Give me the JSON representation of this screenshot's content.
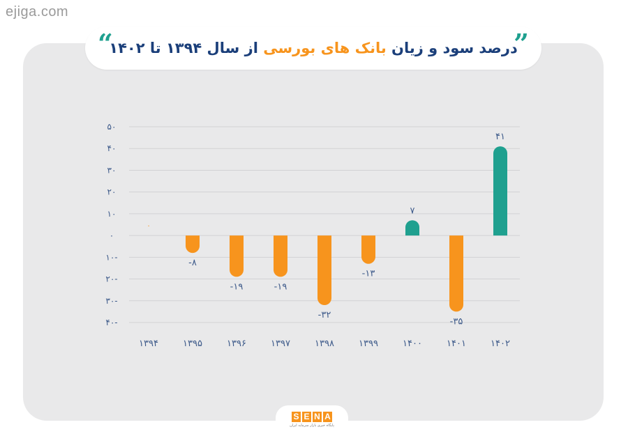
{
  "watermark": "ejiga.com",
  "header": {
    "title_main": "درصد سود و زیان ",
    "title_accent": "بانک های بورسی",
    "title_end": " از سال ۱۳۹۴ تا ۱۴۰۲",
    "quote_open": "”",
    "quote_close": "“"
  },
  "logo": {
    "letters": [
      "S",
      "E",
      "N",
      "A"
    ],
    "tagline": "پایگاه خبری بازار سرمایه ایران"
  },
  "colors": {
    "positive": "#1fa08f",
    "negative": "#f7941d",
    "axis_text": "#3d5a8a",
    "grid": "#d2d2d4"
  },
  "chart_data": {
    "type": "bar",
    "categories": [
      "۱۳۹۴",
      "۱۳۹۵",
      "۱۳۹۶",
      "۱۳۹۷",
      "۱۳۹۸",
      "۱۳۹۹",
      "۱۴۰۰",
      "۱۴۰۱",
      "۱۴۰۲"
    ],
    "values": [
      0,
      -8,
      -19,
      -19,
      -32,
      -13,
      7,
      -35,
      41
    ],
    "value_labels": [
      "۰",
      "-۸",
      "-۱۹",
      "-۱۹",
      "-۳۲",
      "-۱۳",
      "۷",
      "-۳۵",
      "۴۱"
    ],
    "ylim": [
      -40,
      50
    ],
    "yticks": [
      50,
      40,
      30,
      20,
      10,
      0,
      -10,
      -20,
      -30,
      -40
    ],
    "ytick_labels": [
      "۵۰",
      "۴۰",
      "۳۰",
      "۲۰",
      "۱۰",
      "۰",
      "۱۰-",
      "۲۰-",
      "۳۰-",
      "۴۰-"
    ],
    "grid": true,
    "title": "درصد سود و زیان بانک های بورسی از سال ۱۳۹۴ تا ۱۴۰۲",
    "xlabel": "",
    "ylabel": ""
  }
}
